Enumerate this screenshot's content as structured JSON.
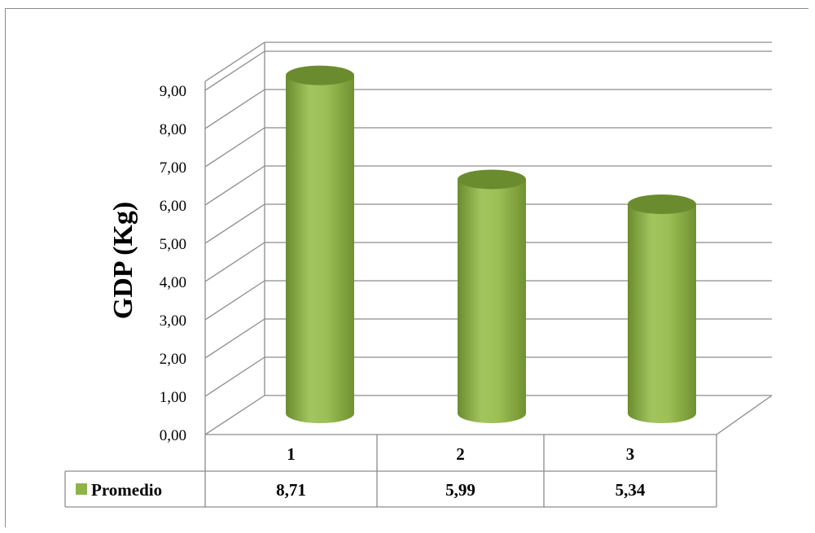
{
  "chart_data": {
    "type": "bar",
    "style": "3d-cylinder",
    "categories": [
      "1",
      "2",
      "3"
    ],
    "series": [
      {
        "name": "Promedio",
        "values": [
          8.71,
          5.99,
          5.34
        ],
        "value_labels": [
          "8,71",
          "5,99",
          "5,34"
        ]
      }
    ],
    "ylabel": "GDP (Kg)",
    "ylim": [
      0,
      9
    ],
    "yticks": [
      "0,00",
      "1,00",
      "2,00",
      "3,00",
      "4,00",
      "5,00",
      "6,00",
      "7,00",
      "8,00",
      "9,00"
    ],
    "grid": true,
    "legend": "data-table",
    "colors": {
      "bar": "#8fb34a",
      "bar_dark": "#6b8c2e",
      "grid": "#8c8c8c"
    }
  }
}
